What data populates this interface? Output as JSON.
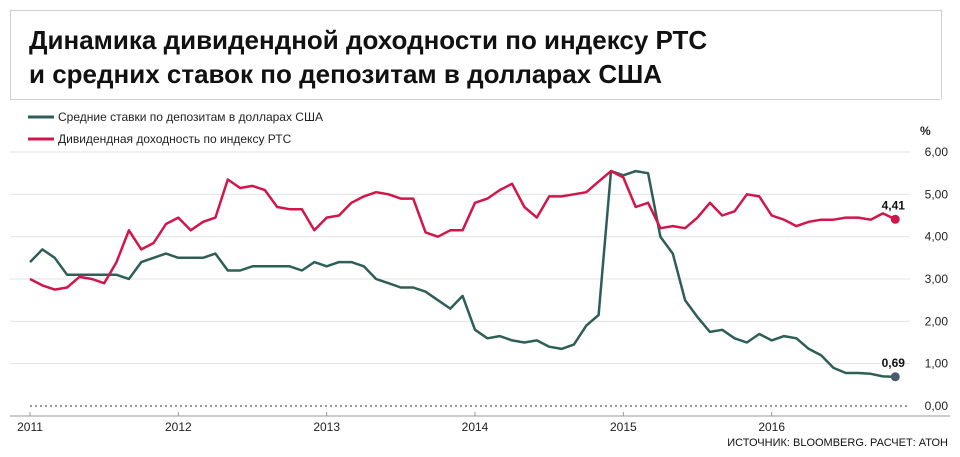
{
  "title_lines": [
    "Динамика дивидендной доходности по индексу РТС",
    "и средних ставок по депозитам в долларах США"
  ],
  "source": "ИСТОЧНИК: BLOOMBERG. РАСЧЕТ: АТОН",
  "chart_data": {
    "type": "line",
    "title": "Динамика дивидендной доходности по индексу РТС и средних ставок по депозитам в долларах США",
    "unit_label": "%",
    "x_ticks": [
      "2011",
      "2012",
      "2013",
      "2014",
      "2015",
      "2016"
    ],
    "y_ticks": [
      "6,00",
      "5,00",
      "4,00",
      "3,00",
      "2,00",
      "1,00",
      "0,00"
    ],
    "ylim": [
      0,
      6.0
    ],
    "xlim": [
      2011.0,
      2017.0
    ],
    "grid": "horizontal",
    "legend_position": "top-left",
    "colors": {
      "deposit": "#2e5f57",
      "dividend": "#d0164a"
    },
    "series": [
      {
        "name": "Средние ставки по депозитам в долларах США",
        "end_label": "0,69",
        "x": [
          2011.0,
          2011.0833,
          2011.1667,
          2011.25,
          2011.3333,
          2011.4167,
          2011.5,
          2011.5833,
          2011.6667,
          2011.75,
          2011.8333,
          2011.9167,
          2012.0,
          2012.0833,
          2012.1667,
          2012.25,
          2012.3333,
          2012.4167,
          2012.5,
          2012.5833,
          2012.6667,
          2012.75,
          2012.8333,
          2012.9167,
          2013.0,
          2013.0833,
          2013.1667,
          2013.25,
          2013.3333,
          2013.4167,
          2013.5,
          2013.5833,
          2013.6667,
          2013.75,
          2013.8333,
          2013.9167,
          2014.0,
          2014.0833,
          2014.1667,
          2014.25,
          2014.3333,
          2014.4167,
          2014.5,
          2014.5833,
          2014.6667,
          2014.75,
          2014.8333,
          2014.9167,
          2015.0,
          2015.0833,
          2015.1667,
          2015.25,
          2015.3333,
          2015.4167,
          2015.5,
          2015.5833,
          2015.6667,
          2015.75,
          2015.8333,
          2015.9167,
          2016.0,
          2016.0833,
          2016.1667,
          2016.25,
          2016.3333,
          2016.4167,
          2016.5,
          2016.5833,
          2016.6667,
          2016.75,
          2016.8333
        ],
        "values": [
          3.4,
          3.7,
          3.5,
          3.1,
          3.1,
          3.1,
          3.1,
          3.1,
          3.0,
          3.4,
          3.5,
          3.6,
          3.5,
          3.5,
          3.5,
          3.6,
          3.2,
          3.2,
          3.3,
          3.3,
          3.3,
          3.3,
          3.2,
          3.4,
          3.3,
          3.4,
          3.4,
          3.3,
          3.0,
          2.9,
          2.8,
          2.8,
          2.7,
          2.5,
          2.3,
          2.6,
          1.8,
          1.6,
          1.65,
          1.55,
          1.5,
          1.55,
          1.4,
          1.35,
          1.45,
          1.9,
          2.15,
          5.55,
          5.45,
          5.55,
          5.5,
          4.0,
          3.6,
          2.5,
          2.1,
          1.75,
          1.8,
          1.6,
          1.5,
          1.7,
          1.55,
          1.65,
          1.6,
          1.35,
          1.2,
          0.9,
          0.78,
          0.78,
          0.76,
          0.7,
          0.69
        ]
      },
      {
        "name": "Дивидендная доходность по индексу РТС",
        "end_label": "4,41",
        "x": [
          2011.0,
          2011.0833,
          2011.1667,
          2011.25,
          2011.3333,
          2011.4167,
          2011.5,
          2011.5833,
          2011.6667,
          2011.75,
          2011.8333,
          2011.9167,
          2012.0,
          2012.0833,
          2012.1667,
          2012.25,
          2012.3333,
          2012.4167,
          2012.5,
          2012.5833,
          2012.6667,
          2012.75,
          2012.8333,
          2012.9167,
          2013.0,
          2013.0833,
          2013.1667,
          2013.25,
          2013.3333,
          2013.4167,
          2013.5,
          2013.5833,
          2013.6667,
          2013.75,
          2013.8333,
          2013.9167,
          2014.0,
          2014.0833,
          2014.1667,
          2014.25,
          2014.3333,
          2014.4167,
          2014.5,
          2014.5833,
          2014.6667,
          2014.75,
          2014.8333,
          2014.9167,
          2015.0,
          2015.0833,
          2015.1667,
          2015.25,
          2015.3333,
          2015.4167,
          2015.5,
          2015.5833,
          2015.6667,
          2015.75,
          2015.8333,
          2015.9167,
          2016.0,
          2016.0833,
          2016.1667,
          2016.25,
          2016.3333,
          2016.4167,
          2016.5,
          2016.5833,
          2016.6667,
          2016.75,
          2016.8333
        ],
        "values": [
          3.0,
          2.85,
          2.75,
          2.8,
          3.05,
          3.0,
          2.9,
          3.4,
          4.15,
          3.7,
          3.85,
          4.3,
          4.45,
          4.15,
          4.35,
          4.45,
          5.35,
          5.15,
          5.2,
          5.1,
          4.7,
          4.65,
          4.65,
          4.15,
          4.45,
          4.5,
          4.8,
          4.95,
          5.05,
          5.0,
          4.9,
          4.9,
          4.1,
          4.0,
          4.15,
          4.15,
          4.8,
          4.9,
          5.1,
          5.25,
          4.7,
          4.45,
          4.95,
          4.95,
          5.0,
          5.05,
          5.3,
          5.55,
          5.4,
          4.7,
          4.8,
          4.2,
          4.25,
          4.2,
          4.45,
          4.8,
          4.5,
          4.6,
          5.0,
          4.95,
          4.5,
          4.4,
          4.25,
          4.35,
          4.4,
          4.4,
          4.45,
          4.45,
          4.4,
          4.55,
          4.41
        ]
      }
    ]
  }
}
